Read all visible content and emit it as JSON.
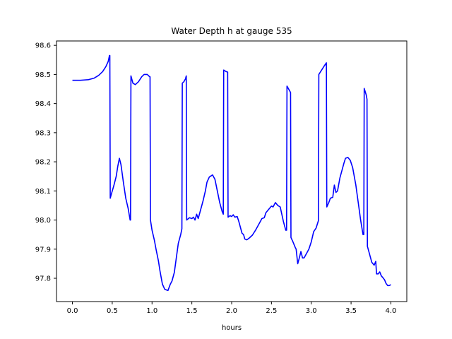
{
  "chart_data": {
    "type": "line",
    "title": "Water Depth h at gauge 535",
    "xlabel": "hours",
    "ylabel": "",
    "xlim": [
      -0.2,
      4.2
    ],
    "ylim": [
      97.72,
      98.615
    ],
    "xticks": [
      0.0,
      0.5,
      1.0,
      1.5,
      2.0,
      2.5,
      3.0,
      3.5,
      4.0
    ],
    "xtick_labels": [
      "0.0",
      "0.5",
      "1.0",
      "1.5",
      "2.0",
      "2.5",
      "3.0",
      "3.5",
      "4.0"
    ],
    "yticks": [
      97.8,
      97.9,
      98.0,
      98.1,
      98.2,
      98.3,
      98.4,
      98.5,
      98.6
    ],
    "ytick_labels": [
      "97.8",
      "97.9",
      "98.0",
      "98.1",
      "98.2",
      "98.3",
      "98.4",
      "98.5",
      "98.6"
    ],
    "grid": false,
    "legend": null,
    "series": [
      {
        "color": "#0000ff",
        "points": [
          [
            0.0,
            98.48
          ],
          [
            0.1,
            98.48
          ],
          [
            0.2,
            98.482
          ],
          [
            0.27,
            98.487
          ],
          [
            0.33,
            98.497
          ],
          [
            0.38,
            98.51
          ],
          [
            0.42,
            98.527
          ],
          [
            0.45,
            98.545
          ],
          [
            0.465,
            98.565
          ],
          [
            0.47,
            98.565
          ],
          [
            0.475,
            98.075
          ],
          [
            0.49,
            98.09
          ],
          [
            0.52,
            98.118
          ],
          [
            0.55,
            98.15
          ],
          [
            0.57,
            98.185
          ],
          [
            0.59,
            98.212
          ],
          [
            0.61,
            98.19
          ],
          [
            0.64,
            98.13
          ],
          [
            0.67,
            98.075
          ],
          [
            0.7,
            98.04
          ],
          [
            0.725,
            98.0
          ],
          [
            0.73,
            98.0
          ],
          [
            0.735,
            98.495
          ],
          [
            0.76,
            98.47
          ],
          [
            0.79,
            98.465
          ],
          [
            0.83,
            98.475
          ],
          [
            0.87,
            98.492
          ],
          [
            0.9,
            98.5
          ],
          [
            0.94,
            98.5
          ],
          [
            0.97,
            98.492
          ],
          [
            0.975,
            98.492
          ],
          [
            0.98,
            98.0
          ],
          [
            1.0,
            97.965
          ],
          [
            1.03,
            97.93
          ],
          [
            1.05,
            97.9
          ],
          [
            1.08,
            97.86
          ],
          [
            1.1,
            97.825
          ],
          [
            1.13,
            97.78
          ],
          [
            1.16,
            97.762
          ],
          [
            1.2,
            97.758
          ],
          [
            1.23,
            97.78
          ],
          [
            1.25,
            97.79
          ],
          [
            1.28,
            97.82
          ],
          [
            1.3,
            97.86
          ],
          [
            1.33,
            97.92
          ],
          [
            1.36,
            97.95
          ],
          [
            1.375,
            97.97
          ],
          [
            1.38,
            98.47
          ],
          [
            1.4,
            98.475
          ],
          [
            1.42,
            98.485
          ],
          [
            1.43,
            98.495
          ],
          [
            1.435,
            98.0
          ],
          [
            1.47,
            98.008
          ],
          [
            1.5,
            98.005
          ],
          [
            1.52,
            98.01
          ],
          [
            1.54,
            98.0
          ],
          [
            1.56,
            98.02
          ],
          [
            1.58,
            98.005
          ],
          [
            1.61,
            98.035
          ],
          [
            1.64,
            98.065
          ],
          [
            1.67,
            98.1
          ],
          [
            1.69,
            98.13
          ],
          [
            1.72,
            98.148
          ],
          [
            1.76,
            98.155
          ],
          [
            1.79,
            98.14
          ],
          [
            1.82,
            98.1
          ],
          [
            1.85,
            98.06
          ],
          [
            1.88,
            98.03
          ],
          [
            1.895,
            98.02
          ],
          [
            1.9,
            98.515
          ],
          [
            1.93,
            98.51
          ],
          [
            1.95,
            98.508
          ],
          [
            1.955,
            98.01
          ],
          [
            1.98,
            98.015
          ],
          [
            2.0,
            98.012
          ],
          [
            2.02,
            98.018
          ],
          [
            2.04,
            98.01
          ],
          [
            2.07,
            98.012
          ],
          [
            2.09,
            97.995
          ],
          [
            2.11,
            97.975
          ],
          [
            2.13,
            97.955
          ],
          [
            2.15,
            97.95
          ],
          [
            2.165,
            97.935
          ],
          [
            2.19,
            97.932
          ],
          [
            2.22,
            97.938
          ],
          [
            2.26,
            97.948
          ],
          [
            2.3,
            97.965
          ],
          [
            2.34,
            97.985
          ],
          [
            2.38,
            98.005
          ],
          [
            2.41,
            98.008
          ],
          [
            2.43,
            98.025
          ],
          [
            2.46,
            98.035
          ],
          [
            2.5,
            98.048
          ],
          [
            2.52,
            98.045
          ],
          [
            2.55,
            98.06
          ],
          [
            2.58,
            98.05
          ],
          [
            2.61,
            98.045
          ],
          [
            2.63,
            98.02
          ],
          [
            2.65,
            97.995
          ],
          [
            2.68,
            97.965
          ],
          [
            2.69,
            97.965
          ],
          [
            2.695,
            98.46
          ],
          [
            2.72,
            98.448
          ],
          [
            2.74,
            98.438
          ],
          [
            2.745,
            97.94
          ],
          [
            2.77,
            97.925
          ],
          [
            2.8,
            97.905
          ],
          [
            2.81,
            97.9
          ],
          [
            2.83,
            97.85
          ],
          [
            2.85,
            97.87
          ],
          [
            2.87,
            97.892
          ],
          [
            2.89,
            97.87
          ],
          [
            2.91,
            97.87
          ],
          [
            2.94,
            97.885
          ],
          [
            2.97,
            97.9
          ],
          [
            3.0,
            97.925
          ],
          [
            3.03,
            97.96
          ],
          [
            3.06,
            97.972
          ],
          [
            3.09,
            97.998
          ],
          [
            3.095,
            98.5
          ],
          [
            3.13,
            98.515
          ],
          [
            3.16,
            98.528
          ],
          [
            3.19,
            98.54
          ],
          [
            3.195,
            98.045
          ],
          [
            3.22,
            98.06
          ],
          [
            3.24,
            98.075
          ],
          [
            3.27,
            98.078
          ],
          [
            3.29,
            98.12
          ],
          [
            3.31,
            98.095
          ],
          [
            3.33,
            98.1
          ],
          [
            3.36,
            98.145
          ],
          [
            3.39,
            98.175
          ],
          [
            3.41,
            98.195
          ],
          [
            3.43,
            98.212
          ],
          [
            3.46,
            98.215
          ],
          [
            3.49,
            98.205
          ],
          [
            3.52,
            98.18
          ],
          [
            3.56,
            98.12
          ],
          [
            3.59,
            98.06
          ],
          [
            3.62,
            98.0
          ],
          [
            3.65,
            97.95
          ],
          [
            3.66,
            97.95
          ],
          [
            3.665,
            98.452
          ],
          [
            3.69,
            98.43
          ],
          [
            3.7,
            98.415
          ],
          [
            3.705,
            97.91
          ],
          [
            3.73,
            97.885
          ],
          [
            3.76,
            97.855
          ],
          [
            3.79,
            97.845
          ],
          [
            3.81,
            97.858
          ],
          [
            3.82,
            97.815
          ],
          [
            3.84,
            97.815
          ],
          [
            3.86,
            97.822
          ],
          [
            3.88,
            97.808
          ],
          [
            3.9,
            97.802
          ],
          [
            3.92,
            97.795
          ],
          [
            3.94,
            97.782
          ],
          [
            3.96,
            97.775
          ],
          [
            3.98,
            97.775
          ],
          [
            4.0,
            97.778
          ]
        ]
      }
    ]
  }
}
